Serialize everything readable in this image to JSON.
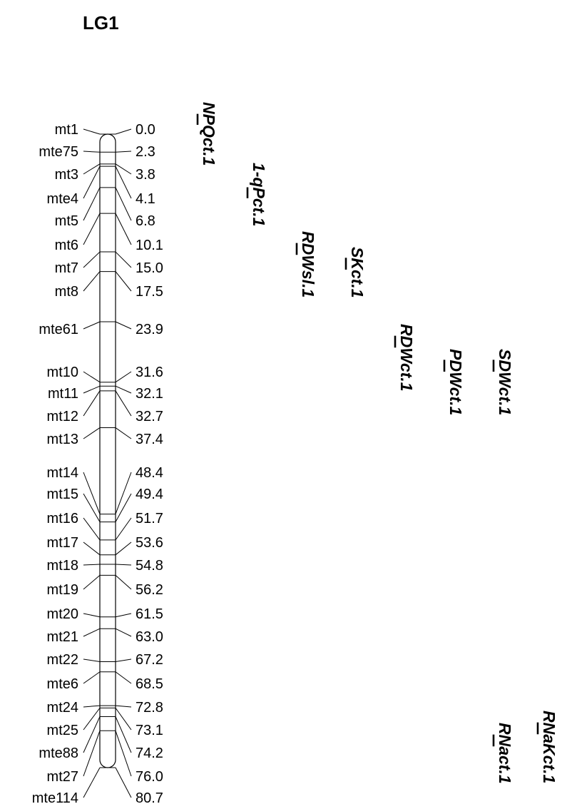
{
  "linkage_group": "LG1",
  "markers": [
    {
      "name": "mt1",
      "pos": "0.0"
    },
    {
      "name": "mte75",
      "pos": "2.3"
    },
    {
      "name": "mt3",
      "pos": "3.8"
    },
    {
      "name": "mte4",
      "pos": "4.1"
    },
    {
      "name": "mt5",
      "pos": "6.8"
    },
    {
      "name": "mt6",
      "pos": "10.1"
    },
    {
      "name": "mt7",
      "pos": "15.0"
    },
    {
      "name": "mt8",
      "pos": "17.5"
    },
    {
      "name": "mte61",
      "pos": "23.9"
    },
    {
      "name": "mt10",
      "pos": "31.6"
    },
    {
      "name": "mt11",
      "pos": "32.1"
    },
    {
      "name": "mt12",
      "pos": "32.7"
    },
    {
      "name": "mt13",
      "pos": "37.4"
    },
    {
      "name": "mt14",
      "pos": "48.4"
    },
    {
      "name": "mt15",
      "pos": "49.4"
    },
    {
      "name": "mt16",
      "pos": "51.7"
    },
    {
      "name": "mt17",
      "pos": "53.6"
    },
    {
      "name": "mt18",
      "pos": "54.8"
    },
    {
      "name": "mt19",
      "pos": "56.2"
    },
    {
      "name": "mt20",
      "pos": "61.5"
    },
    {
      "name": "mt21",
      "pos": "63.0"
    },
    {
      "name": "mt22",
      "pos": "67.2"
    },
    {
      "name": "mte6",
      "pos": "68.5"
    },
    {
      "name": "mt24",
      "pos": "72.8"
    },
    {
      "name": "mt25",
      "pos": "73.1"
    },
    {
      "name": "mte88",
      "pos": "74.2"
    },
    {
      "name": "mt27",
      "pos": "76.0"
    },
    {
      "name": "mte114",
      "pos": "80.7"
    }
  ],
  "qtls": [
    {
      "label": "NPQct.1",
      "underline_index": 1
    },
    {
      "label": "1-qPct.1",
      "underline_index": 3
    },
    {
      "label": "RDWsl.1",
      "underline_index": 1
    },
    {
      "label": "SKct.1",
      "underline_index": 1
    },
    {
      "label": "RDWct.1",
      "underline_index": 1
    },
    {
      "label": "PDWct.1",
      "underline_index": 1
    },
    {
      "label": "SDWct.1",
      "underline_index": 1
    },
    {
      "label": "RNact.1",
      "underline_index": 1
    },
    {
      "label": "RNaKct.1",
      "underline_index": 1
    }
  ]
}
